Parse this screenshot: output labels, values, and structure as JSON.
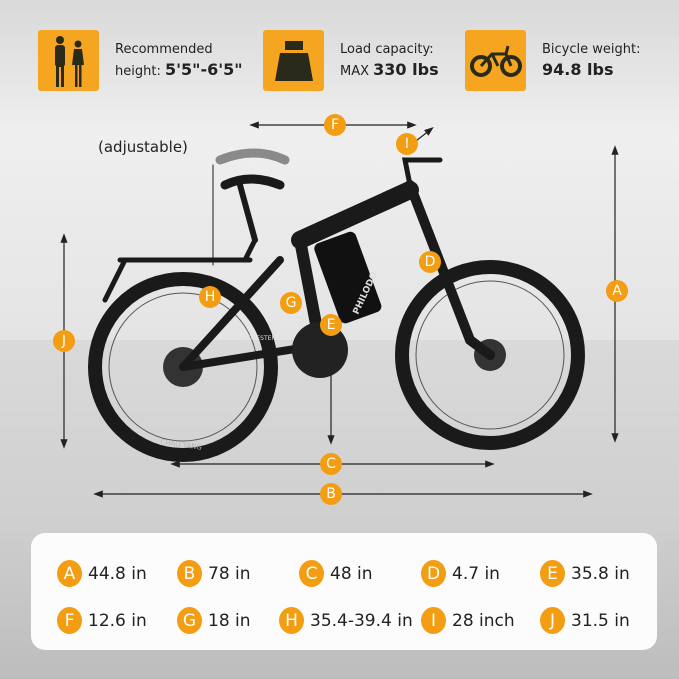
{
  "features": [
    {
      "icon": "people-icon",
      "line1": "Recommended",
      "line2_prefix": "height:",
      "line2_value": "5'5\"-6'5\""
    },
    {
      "icon": "weight-icon",
      "line1": "Load capacity:",
      "line2_prefix": "MAX",
      "line2_value": "330 lbs"
    },
    {
      "icon": "bicycle-icon",
      "line1": "Bicycle weight:",
      "line2_prefix": "",
      "line2_value": "94.8 lbs"
    }
  ],
  "adjustable_note": "(adjustable)",
  "bike_branding": {
    "frame": "PHILODO",
    "chainstay": "FORESTER",
    "tire": "CHAO YANG"
  },
  "accent_color": "#f29d12",
  "markers": [
    "A",
    "B",
    "C",
    "D",
    "E",
    "F",
    "G",
    "H",
    "I",
    "J"
  ],
  "specs": [
    {
      "letter": "A",
      "value": "44.8 in"
    },
    {
      "letter": "B",
      "value": "78 in"
    },
    {
      "letter": "C",
      "value": "48 in"
    },
    {
      "letter": "D",
      "value": "4.7 in"
    },
    {
      "letter": "E",
      "value": "35.8 in"
    },
    {
      "letter": "F",
      "value": "12.6 in"
    },
    {
      "letter": "G",
      "value": "18 in"
    },
    {
      "letter": "H",
      "value": "35.4-39.4 in"
    },
    {
      "letter": "I",
      "value": "28 inch"
    },
    {
      "letter": "J",
      "value": "31.5 in"
    }
  ]
}
